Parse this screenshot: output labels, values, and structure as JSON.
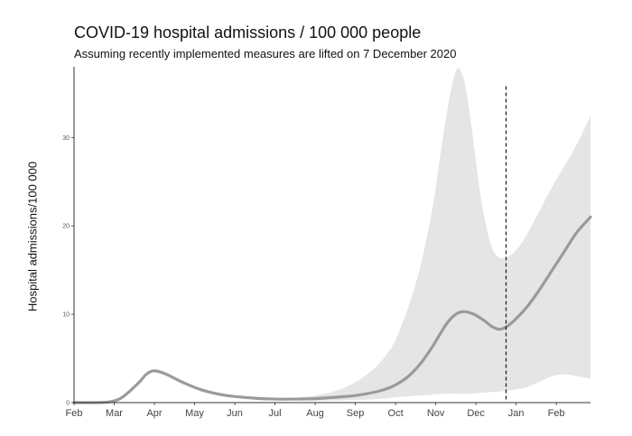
{
  "chart_data": {
    "type": "area",
    "title": "COVID-19 hospital admissions / 100 000 people",
    "subtitle": "Assuming recently implemented measures are lifted on 7 December 2020",
    "xlabel": "",
    "ylabel": "Hospital admissions/100 000",
    "x_ticks": [
      "Feb",
      "Mar",
      "Apr",
      "May",
      "Jun",
      "Jul",
      "Aug",
      "Sep",
      "Oct",
      "Nov",
      "Dec",
      "Jan",
      "Feb"
    ],
    "y_ticks": [
      0,
      10,
      20,
      30
    ],
    "ylim": [
      0,
      38
    ],
    "xlim_months": [
      0,
      12.85
    ],
    "vline_month": 10.75,
    "series": [
      {
        "name": "median",
        "x": [
          0,
          0.5,
          0.9,
          1.2,
          1.6,
          1.8,
          2.0,
          2.3,
          2.7,
          3.2,
          3.8,
          4.5,
          5.0,
          5.5,
          6.0,
          6.5,
          7.0,
          7.5,
          7.8,
          8.0,
          8.3,
          8.6,
          8.9,
          9.1,
          9.3,
          9.5,
          9.7,
          9.95,
          10.2,
          10.4,
          10.6,
          10.8,
          11.0,
          11.3,
          11.6,
          11.9,
          12.2,
          12.5,
          12.85
        ],
        "y": [
          0,
          0,
          0.1,
          0.6,
          2.2,
          3.2,
          3.6,
          3.2,
          2.3,
          1.4,
          0.8,
          0.5,
          0.4,
          0.4,
          0.45,
          0.6,
          0.8,
          1.2,
          1.6,
          2.0,
          2.9,
          4.3,
          6.2,
          7.7,
          9.1,
          10.0,
          10.3,
          10.0,
          9.3,
          8.6,
          8.3,
          8.7,
          9.5,
          11.0,
          12.9,
          15.0,
          17.1,
          19.2,
          21.0
        ]
      },
      {
        "name": "upper",
        "x": [
          0,
          0.5,
          0.9,
          1.2,
          1.6,
          1.8,
          2.0,
          2.3,
          2.7,
          3.2,
          3.8,
          4.5,
          5.0,
          5.5,
          6.0,
          6.5,
          7.0,
          7.5,
          7.8,
          8.0,
          8.3,
          8.6,
          8.9,
          9.1,
          9.3,
          9.5,
          9.65,
          9.8,
          9.95,
          10.1,
          10.25,
          10.4,
          10.55,
          10.75,
          10.95,
          11.2,
          11.5,
          11.8,
          12.1,
          12.4,
          12.65,
          12.85
        ],
        "y": [
          0,
          0,
          0.1,
          0.7,
          2.3,
          3.3,
          3.7,
          3.3,
          2.4,
          1.5,
          0.9,
          0.6,
          0.5,
          0.55,
          0.8,
          1.3,
          2.3,
          4.0,
          5.6,
          7.1,
          10.6,
          15.1,
          21.5,
          27.5,
          33.4,
          37.5,
          37.3,
          34.2,
          29.1,
          23.8,
          20.1,
          17.5,
          16.5,
          16.4,
          17.0,
          18.5,
          21.0,
          23.6,
          26.0,
          28.3,
          30.5,
          32.5
        ]
      },
      {
        "name": "lower",
        "x": [
          0,
          0.5,
          0.9,
          1.2,
          1.6,
          1.8,
          2.0,
          2.3,
          2.7,
          3.2,
          3.8,
          4.5,
          5.0,
          5.5,
          6.0,
          6.5,
          7.0,
          7.5,
          7.8,
          8.0,
          8.3,
          8.6,
          8.9,
          9.2,
          9.5,
          9.8,
          10.1,
          10.4,
          10.7,
          11.0,
          11.3,
          11.6,
          11.9,
          12.2,
          12.5,
          12.85
        ],
        "y": [
          0,
          0,
          0.1,
          0.5,
          2.1,
          3.1,
          3.5,
          3.1,
          2.2,
          1.3,
          0.7,
          0.4,
          0.3,
          0.25,
          0.2,
          0.25,
          0.3,
          0.4,
          0.5,
          0.6,
          0.7,
          0.8,
          0.9,
          1.0,
          1.0,
          1.0,
          1.1,
          1.2,
          1.3,
          1.5,
          1.8,
          2.4,
          3.0,
          3.2,
          3.0,
          2.7
        ]
      }
    ],
    "colors": {
      "band": "#e5e5e5",
      "line": "#9a9a9a",
      "axis": "#333333",
      "vline": "#222222"
    }
  }
}
